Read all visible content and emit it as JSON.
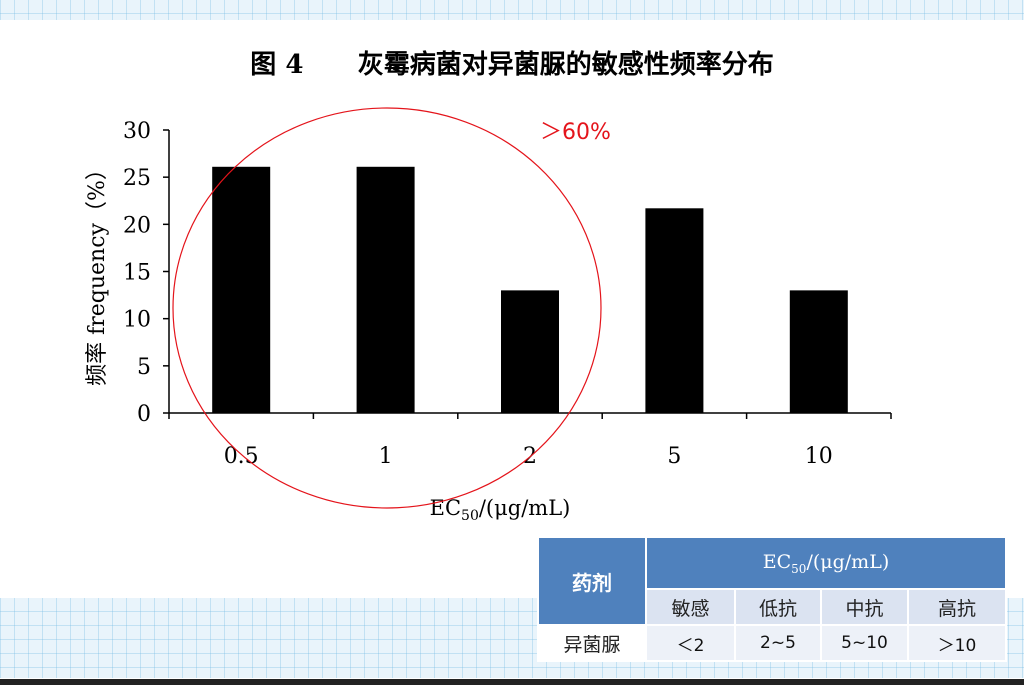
{
  "chart_data": {
    "type": "bar",
    "title": "图 4      灰霉病菌对异菌脲的敏感性频率分布",
    "categories": [
      "0.5",
      "1",
      "2",
      "5",
      "10"
    ],
    "values": [
      26.1,
      26.1,
      13.0,
      21.7,
      13.0
    ],
    "xlabel": "EC50/(μg/mL)",
    "ylabel": "频率 frequency（%）",
    "ylim": [
      0,
      30
    ],
    "yticks": [
      "0",
      "5",
      "10",
      "15",
      "20",
      "25",
      "30"
    ],
    "bar_color": "#000000",
    "grid": false,
    "annotation": {
      "text": "＞60%",
      "color": "#e4141b",
      "shape": "circle enclosing bars 0.5, 1, 2"
    }
  },
  "legend_table": {
    "drug_header": "药剂",
    "ec_header_prefix": "EC",
    "ec_header_sub": "50",
    "ec_header_suffix": "/(μg/mL)",
    "levels": [
      "敏感",
      "低抗",
      "中抗",
      "高抗"
    ],
    "row": {
      "name": "异菌脲",
      "values": [
        "＜2",
        "2~5",
        "5~10",
        "＞10"
      ]
    },
    "header_color": "#4f81bd"
  }
}
